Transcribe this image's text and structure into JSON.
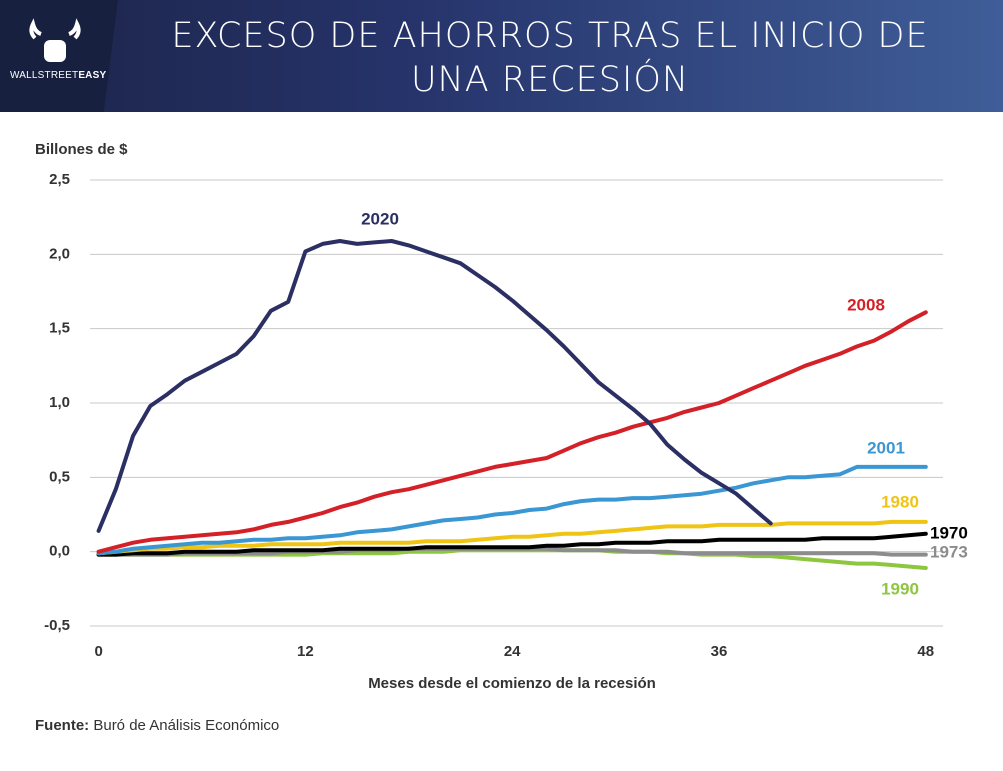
{
  "chart_data": {
    "type": "line",
    "title": "EXCESO DE AHORROS TRAS EL INICIO DE UNA RECESIÓN",
    "brand": [
      "WALLSTREET",
      "EASY"
    ],
    "y_label": "Billones de $",
    "x_label": "Meses desde el comienzo de la recesión",
    "source_label": "Fuente:",
    "source": "Buró de Análisis Económico",
    "xlim": [
      -0.5,
      49
    ],
    "xticks": [
      0,
      12,
      24,
      36,
      48
    ],
    "ylim": [
      -0.5,
      2.5
    ],
    "yticks": [
      {
        "value": -0.5,
        "label": "-0,5"
      },
      {
        "value": 0,
        "label": "0,0"
      },
      {
        "value": 0.5,
        "label": "0,5"
      },
      {
        "value": 1,
        "label": "1,0"
      },
      {
        "value": 1.5,
        "label": "1,5"
      },
      {
        "value": 2,
        "label": "2,0"
      },
      {
        "value": 2.5,
        "label": "2,5"
      }
    ],
    "grid": true,
    "x": [
      0,
      1,
      2,
      3,
      4,
      5,
      6,
      7,
      8,
      9,
      10,
      11,
      12,
      13,
      14,
      15,
      16,
      17,
      18,
      19,
      20,
      21,
      22,
      23,
      24,
      25,
      26,
      27,
      28,
      29,
      30,
      31,
      32,
      33,
      34,
      35,
      36,
      37,
      38,
      39,
      40,
      41,
      42,
      43,
      44,
      45,
      46,
      47,
      48
    ],
    "series": [
      {
        "name": "2020",
        "color": "#2b2f63",
        "values": [
          0.14,
          0.42,
          0.78,
          0.98,
          1.06,
          1.15,
          1.21,
          1.27,
          1.33,
          1.45,
          1.62,
          1.68,
          2.02,
          2.07,
          2.09,
          2.07,
          2.08,
          2.09,
          2.06,
          2.02,
          1.98,
          1.94,
          1.86,
          1.78,
          1.69,
          1.59,
          1.49,
          1.38,
          1.26,
          1.14,
          1.05,
          0.96,
          0.86,
          0.72,
          0.62,
          0.53,
          0.46,
          0.39,
          0.29,
          0.19,
          null,
          null,
          null,
          null,
          null,
          null,
          null,
          null,
          null
        ]
      },
      {
        "name": "2008",
        "color": "#d42027",
        "values": [
          0,
          0.03,
          0.06,
          0.08,
          0.09,
          0.1,
          0.11,
          0.12,
          0.13,
          0.15,
          0.18,
          0.2,
          0.23,
          0.26,
          0.3,
          0.33,
          0.37,
          0.4,
          0.42,
          0.45,
          0.48,
          0.51,
          0.54,
          0.57,
          0.59,
          0.61,
          0.63,
          0.68,
          0.73,
          0.77,
          0.8,
          0.84,
          0.87,
          0.9,
          0.94,
          0.97,
          1,
          1.05,
          1.1,
          1.15,
          1.2,
          1.25,
          1.29,
          1.33,
          1.38,
          1.42,
          1.48,
          1.55,
          1.61
        ]
      },
      {
        "name": "2001",
        "color": "#3a97d4",
        "values": [
          -0.01,
          0,
          0.02,
          0.03,
          0.04,
          0.05,
          0.06,
          0.06,
          0.07,
          0.08,
          0.08,
          0.09,
          0.09,
          0.1,
          0.11,
          0.13,
          0.14,
          0.15,
          0.17,
          0.19,
          0.21,
          0.22,
          0.23,
          0.25,
          0.26,
          0.28,
          0.29,
          0.32,
          0.34,
          0.35,
          0.35,
          0.36,
          0.36,
          0.37,
          0.38,
          0.39,
          0.41,
          0.43,
          0.46,
          0.48,
          0.5,
          0.5,
          0.51,
          0.52,
          0.57,
          0.57,
          0.57,
          0.57,
          0.57
        ]
      },
      {
        "name": "1980",
        "color": "#efc415",
        "values": [
          -0.01,
          0,
          0.01,
          0.02,
          0.02,
          0.03,
          0.03,
          0.04,
          0.04,
          0.04,
          0.05,
          0.05,
          0.05,
          0.05,
          0.06,
          0.06,
          0.06,
          0.06,
          0.06,
          0.07,
          0.07,
          0.07,
          0.08,
          0.09,
          0.1,
          0.1,
          0.11,
          0.12,
          0.12,
          0.13,
          0.14,
          0.15,
          0.16,
          0.17,
          0.17,
          0.17,
          0.18,
          0.18,
          0.18,
          0.18,
          0.19,
          0.19,
          0.19,
          0.19,
          0.19,
          0.19,
          0.2,
          0.2,
          0.2
        ]
      },
      {
        "name": "1970",
        "color": "#000000",
        "values": [
          -0.02,
          -0.02,
          -0.01,
          -0.01,
          -0.01,
          0,
          0,
          0,
          0,
          0.01,
          0.01,
          0.01,
          0.01,
          0.01,
          0.02,
          0.02,
          0.02,
          0.02,
          0.02,
          0.03,
          0.03,
          0.03,
          0.03,
          0.03,
          0.03,
          0.03,
          0.04,
          0.04,
          0.05,
          0.05,
          0.06,
          0.06,
          0.06,
          0.07,
          0.07,
          0.07,
          0.08,
          0.08,
          0.08,
          0.08,
          0.08,
          0.08,
          0.09,
          0.09,
          0.09,
          0.09,
          0.1,
          0.11,
          0.12
        ]
      },
      {
        "name": "1973",
        "color": "#8c8c8c",
        "values": [
          -0.02,
          -0.02,
          -0.02,
          -0.02,
          -0.02,
          -0.01,
          -0.01,
          -0.01,
          -0.01,
          -0.01,
          -0.01,
          0,
          0,
          0,
          0,
          0.01,
          0.01,
          0.01,
          0.02,
          0.02,
          0.02,
          0.02,
          0.02,
          0.02,
          0.02,
          0.02,
          0.02,
          0.01,
          0.01,
          0.01,
          0.01,
          0,
          0,
          0,
          -0.01,
          -0.01,
          -0.01,
          -0.01,
          -0.01,
          -0.01,
          -0.01,
          -0.01,
          -0.01,
          -0.01,
          -0.01,
          -0.01,
          -0.02,
          -0.02,
          -0.02
        ]
      },
      {
        "name": "1990",
        "color": "#8dc63f",
        "values": [
          -0.02,
          -0.02,
          -0.02,
          -0.02,
          -0.02,
          -0.02,
          -0.02,
          -0.02,
          -0.02,
          -0.02,
          -0.02,
          -0.02,
          -0.02,
          -0.01,
          -0.01,
          -0.01,
          -0.01,
          -0.01,
          0,
          0,
          0,
          0.01,
          0.01,
          0.01,
          0.01,
          0.01,
          0.01,
          0.01,
          0.01,
          0.01,
          0,
          0,
          0,
          -0.01,
          -0.01,
          -0.02,
          -0.02,
          -0.02,
          -0.03,
          -0.03,
          -0.04,
          -0.05,
          -0.06,
          -0.07,
          -0.08,
          -0.08,
          -0.09,
          -0.1,
          -0.11
        ]
      }
    ]
  }
}
